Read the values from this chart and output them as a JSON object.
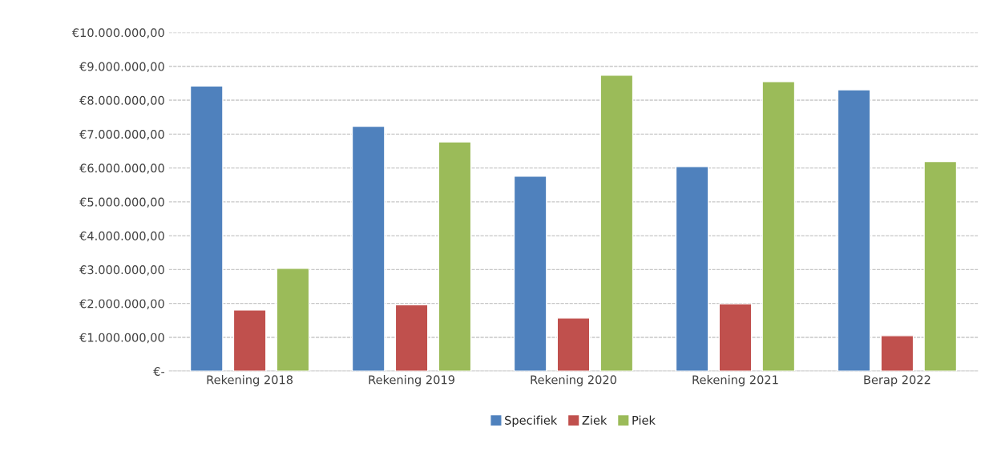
{
  "chart_data": {
    "type": "bar",
    "categories": [
      "Rekening 2018",
      "Rekening 2019",
      "Rekening 2020",
      "Rekening 2021",
      "Berap 2022"
    ],
    "series": [
      {
        "name": "Specifiek",
        "color": "#4f81bd",
        "values": [
          8420000,
          7230000,
          5760000,
          6040000,
          8310000
        ]
      },
      {
        "name": "Ziek",
        "color": "#c0504d",
        "values": [
          1810000,
          1960000,
          1570000,
          1990000,
          1050000
        ]
      },
      {
        "name": "Piek",
        "color": "#9bbb59",
        "values": [
          3040000,
          6770000,
          8740000,
          8550000,
          6190000
        ]
      }
    ],
    "ylim": [
      0,
      10000000
    ],
    "yticks": [
      {
        "value": 0,
        "label": "€-"
      },
      {
        "value": 1000000,
        "label": "€1.000.000,00"
      },
      {
        "value": 2000000,
        "label": "€2.000.000,00"
      },
      {
        "value": 3000000,
        "label": "€3.000.000,00"
      },
      {
        "value": 4000000,
        "label": "€4.000.000,00"
      },
      {
        "value": 5000000,
        "label": "€5.000.000,00"
      },
      {
        "value": 6000000,
        "label": "€6.000.000,00"
      },
      {
        "value": 7000000,
        "label": "€7.000.000,00"
      },
      {
        "value": 8000000,
        "label": "€8.000.000,00"
      },
      {
        "value": 9000000,
        "label": "€9.000.000,00"
      },
      {
        "value": 10000000,
        "label": "€10.000.000,00"
      }
    ],
    "grid": "y",
    "legend": "bottom"
  }
}
